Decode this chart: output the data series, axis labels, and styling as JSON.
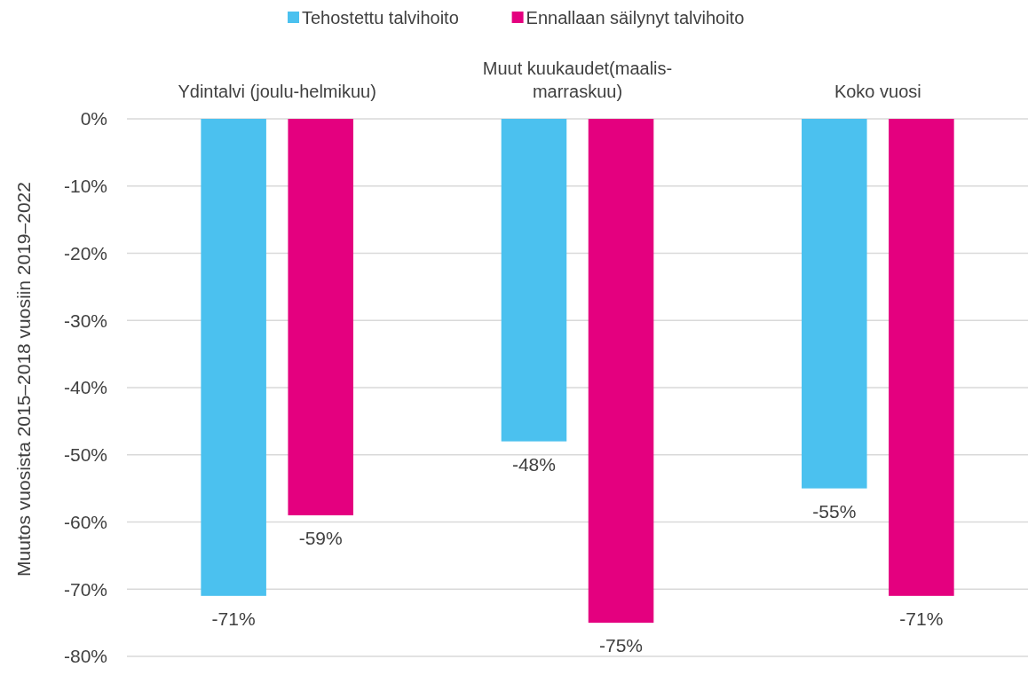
{
  "chart_data": {
    "type": "bar",
    "categories": [
      "Ydintalvi (joulu-helmikuu)",
      "Muut kuukaudet(maalis-marraskuu)",
      "Koko vuosi"
    ],
    "ylabel": "Muutos vuosista 2015–2018 vuosiin 2019–2022",
    "series": [
      {
        "name": "Tehostettu talvihoito",
        "color": "#4bc1ef",
        "values": [
          -71,
          -48,
          -55
        ],
        "value_labels": [
          "-71%",
          "-48%",
          "-55%"
        ]
      },
      {
        "name": "Ennallaan säilynyt talvihoito",
        "color": "#e4007f",
        "values": [
          -59,
          -75,
          -71
        ],
        "value_labels": [
          "-59%",
          "-75%",
          "-71%"
        ]
      }
    ],
    "ylim": [
      -80,
      0
    ],
    "yticks": [
      {
        "value": 0,
        "label": "0%"
      },
      {
        "value": -10,
        "label": "-10%"
      },
      {
        "value": -20,
        "label": "-20%"
      },
      {
        "value": -30,
        "label": "-30%"
      },
      {
        "value": -40,
        "label": "-40%"
      },
      {
        "value": -50,
        "label": "-50%"
      },
      {
        "value": -60,
        "label": "-60%"
      },
      {
        "value": -70,
        "label": "-70%"
      },
      {
        "value": -80,
        "label": "-80%"
      }
    ],
    "grid": "y",
    "legend": "top"
  }
}
